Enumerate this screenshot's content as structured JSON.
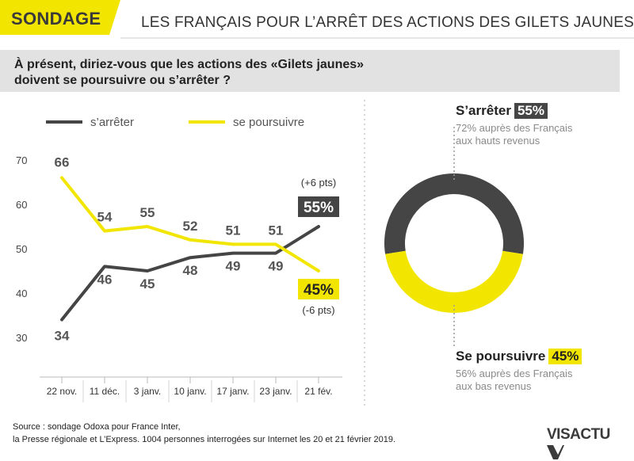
{
  "header": {
    "badge": "SONDAGE",
    "title": "LES FRANÇAIS POUR L’ARRÊT DES ACTIONS DES GILETS JAUNES"
  },
  "question": {
    "line1": "À présent, diriez-vous que les actions des «Gilets jaunes»",
    "line2": "doivent se poursuivre ou s’arrêter ?"
  },
  "colors": {
    "stop": "#454545",
    "continue": "#f2e600",
    "badge_bg": "#f2e600",
    "band": "#e2e2e2",
    "axis": "#b8b8b8"
  },
  "chart_data": [
    {
      "type": "line",
      "legend": {
        "position": "top"
      },
      "categories": [
        "22 nov.",
        "11 déc.",
        "3 janv.",
        "10 janv.",
        "17 janv.",
        "23 janv.",
        "21 fév."
      ],
      "yticks": [
        30,
        40,
        50,
        60,
        70
      ],
      "ylim": [
        28,
        72
      ],
      "grid": false,
      "series": [
        {
          "name": "s’arrêter",
          "color": "#454545",
          "values": [
            34,
            46,
            45,
            48,
            49,
            49,
            55
          ],
          "labels": [
            "34",
            "46",
            "45",
            "48",
            "49",
            "49",
            "55%"
          ]
        },
        {
          "name": "se poursuivre",
          "color": "#f2e600",
          "values": [
            66,
            54,
            55,
            52,
            51,
            51,
            45
          ],
          "labels": [
            "66",
            "54",
            "55",
            "52",
            "51",
            "51",
            "45%"
          ]
        }
      ],
      "annotations": {
        "stop_change": "(+6 pts)",
        "continue_change": "(-6 pts)"
      }
    },
    {
      "type": "pie",
      "donut": true,
      "slices": [
        {
          "label": "S’arrêter",
          "value": 55,
          "display": "55%",
          "color": "#454545",
          "note_line1": "72% auprès des Français",
          "note_line2": "aux hauts revenus"
        },
        {
          "label": "Se poursuivre",
          "value": 45,
          "display": "45%",
          "color": "#f2e600",
          "note_line1": "56% auprès des Français",
          "note_line2": "aux bas revenus"
        }
      ]
    }
  ],
  "footer": {
    "source_line1": "Source : sondage Odoxa pour France Inter,",
    "source_line2": "la Presse régionale et L’Express. 1004 personnes interrogées sur Internet les 20 et 21 février 2019.",
    "logo": "VISACTU"
  }
}
